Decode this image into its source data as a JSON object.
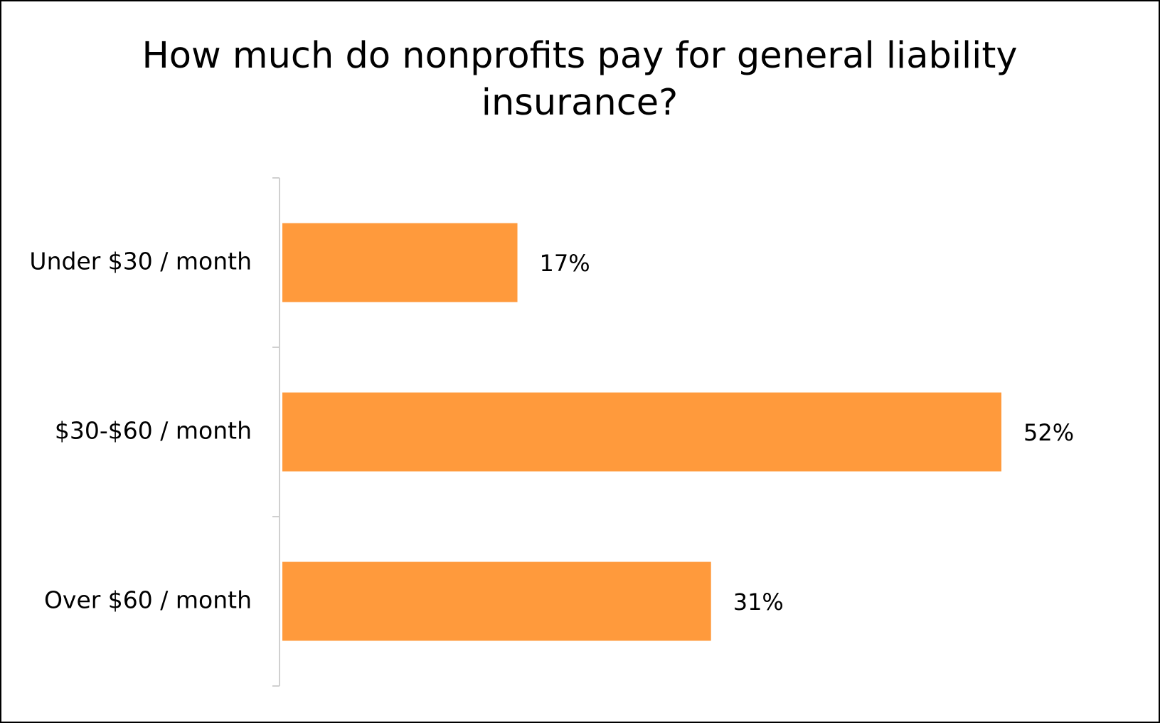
{
  "chart_data": {
    "type": "bar",
    "orientation": "horizontal",
    "title": "How much do nonprofits pay for general liability insurance?",
    "categories": [
      "Under $30 / month",
      "$30-$60 / month",
      "Over $60 / month"
    ],
    "values": [
      17,
      52,
      31
    ],
    "value_labels": [
      "17%",
      "52%",
      "31%"
    ],
    "color": "#ff9a3c"
  }
}
